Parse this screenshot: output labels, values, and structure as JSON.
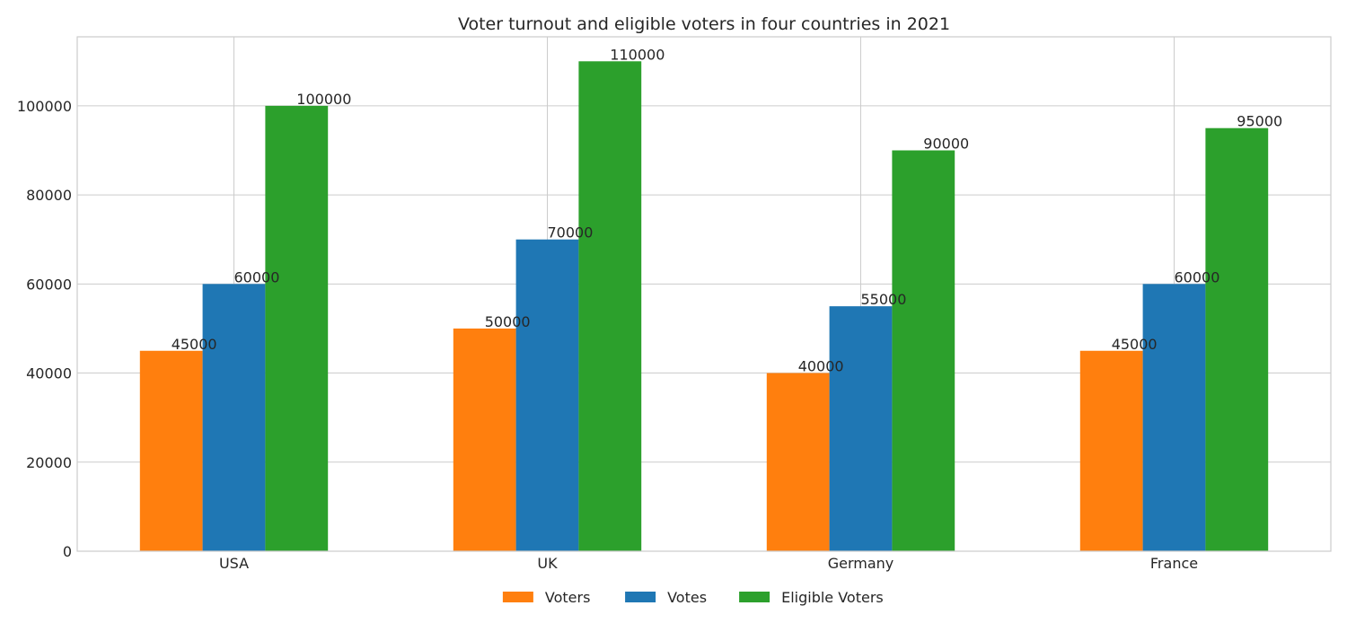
{
  "chart_data": {
    "type": "bar",
    "title": "Voter turnout and eligible voters in four countries in 2021",
    "xlabel": "",
    "ylabel": "",
    "categories": [
      "USA",
      "UK",
      "Germany",
      "France"
    ],
    "series": [
      {
        "name": "Voters",
        "color": "#ff7f0e",
        "values": [
          45000,
          50000,
          40000,
          45000
        ]
      },
      {
        "name": "Votes",
        "color": "#1f77b4",
        "values": [
          60000,
          70000,
          55000,
          60000
        ]
      },
      {
        "name": "Eligible Voters",
        "color": "#2ca02c",
        "values": [
          100000,
          110000,
          90000,
          95000
        ]
      }
    ],
    "ylim": [
      0,
      115500
    ],
    "yticks": [
      0,
      20000,
      40000,
      60000,
      80000,
      100000
    ],
    "grid": true,
    "legend_position": "bottom-center"
  }
}
